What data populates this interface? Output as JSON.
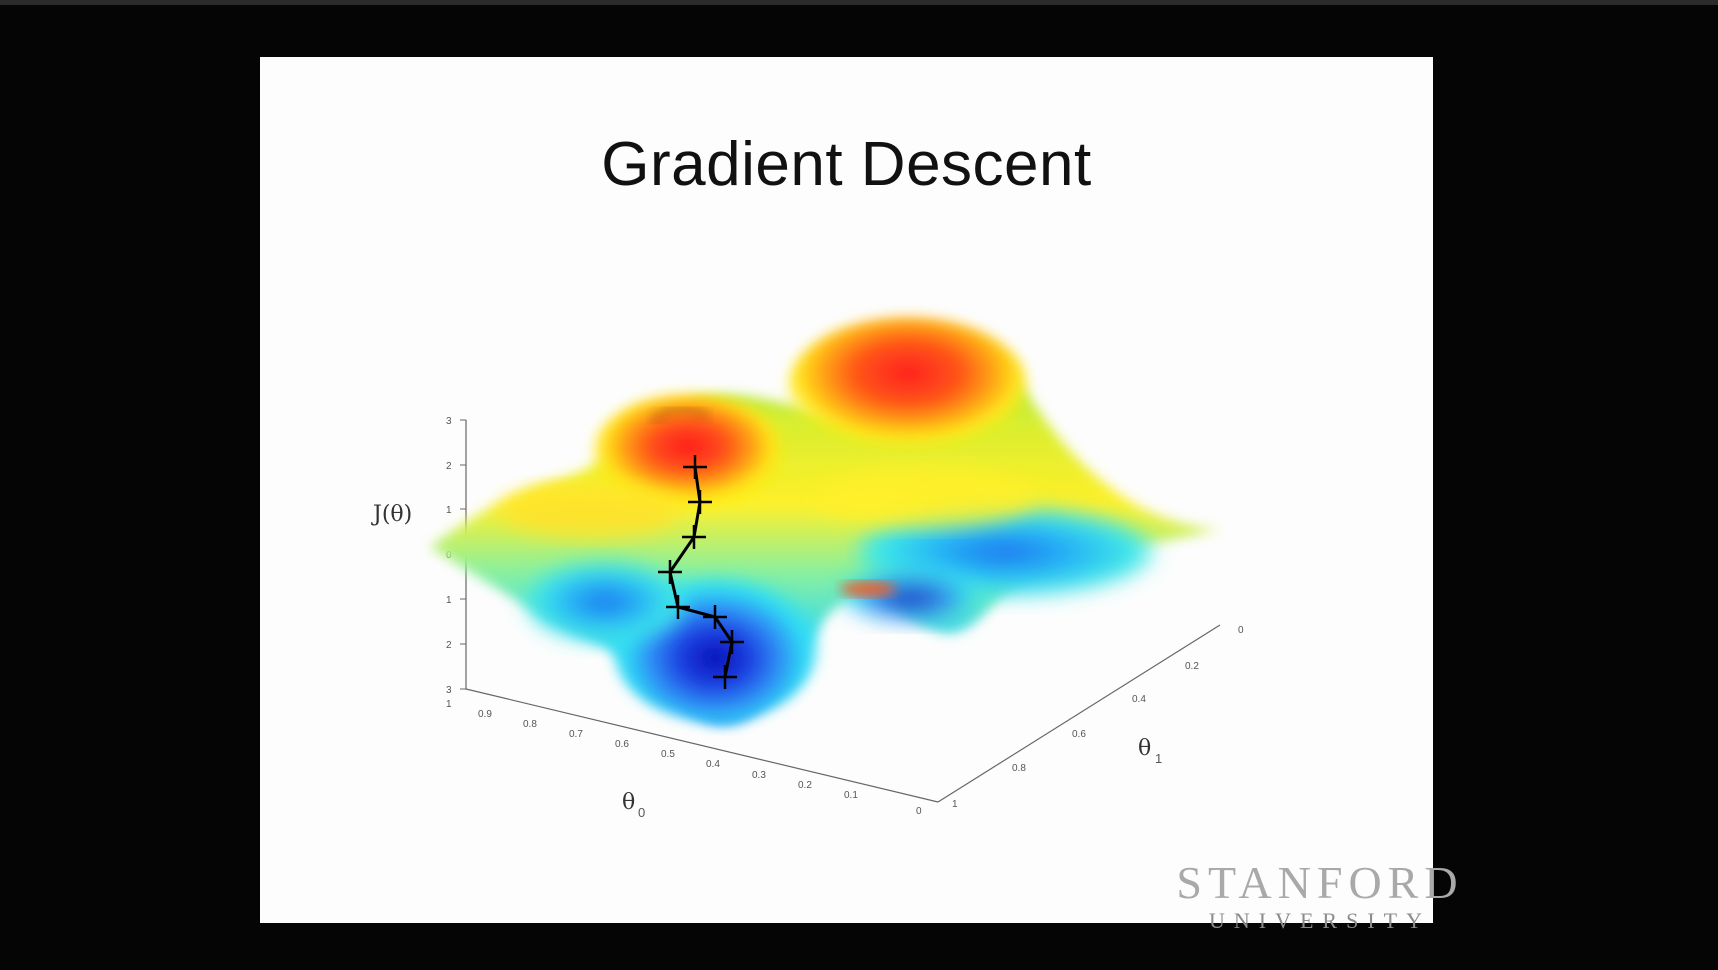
{
  "slide": {
    "title": "Gradient Descent"
  },
  "plot": {
    "z_label": "J(θ)",
    "x_label": "θ",
    "x_label_sub": "0",
    "y_label": "θ",
    "y_label_sub": "1",
    "z_ticks": [
      "3",
      "2",
      "1",
      "0",
      "1",
      "2",
      "3"
    ],
    "x_ticks": [
      "1",
      "0.9",
      "0.8",
      "0.7",
      "0.6",
      "0.5",
      "0.4",
      "0.3",
      "0.2",
      "0.1",
      "0"
    ],
    "y_ticks": [
      "0",
      "0.2",
      "0.4",
      "0.6",
      "0.8",
      "1"
    ],
    "path_color": "#000000"
  },
  "watermark": {
    "line1": "STANFORD",
    "line2": "UNIVERSITY"
  }
}
